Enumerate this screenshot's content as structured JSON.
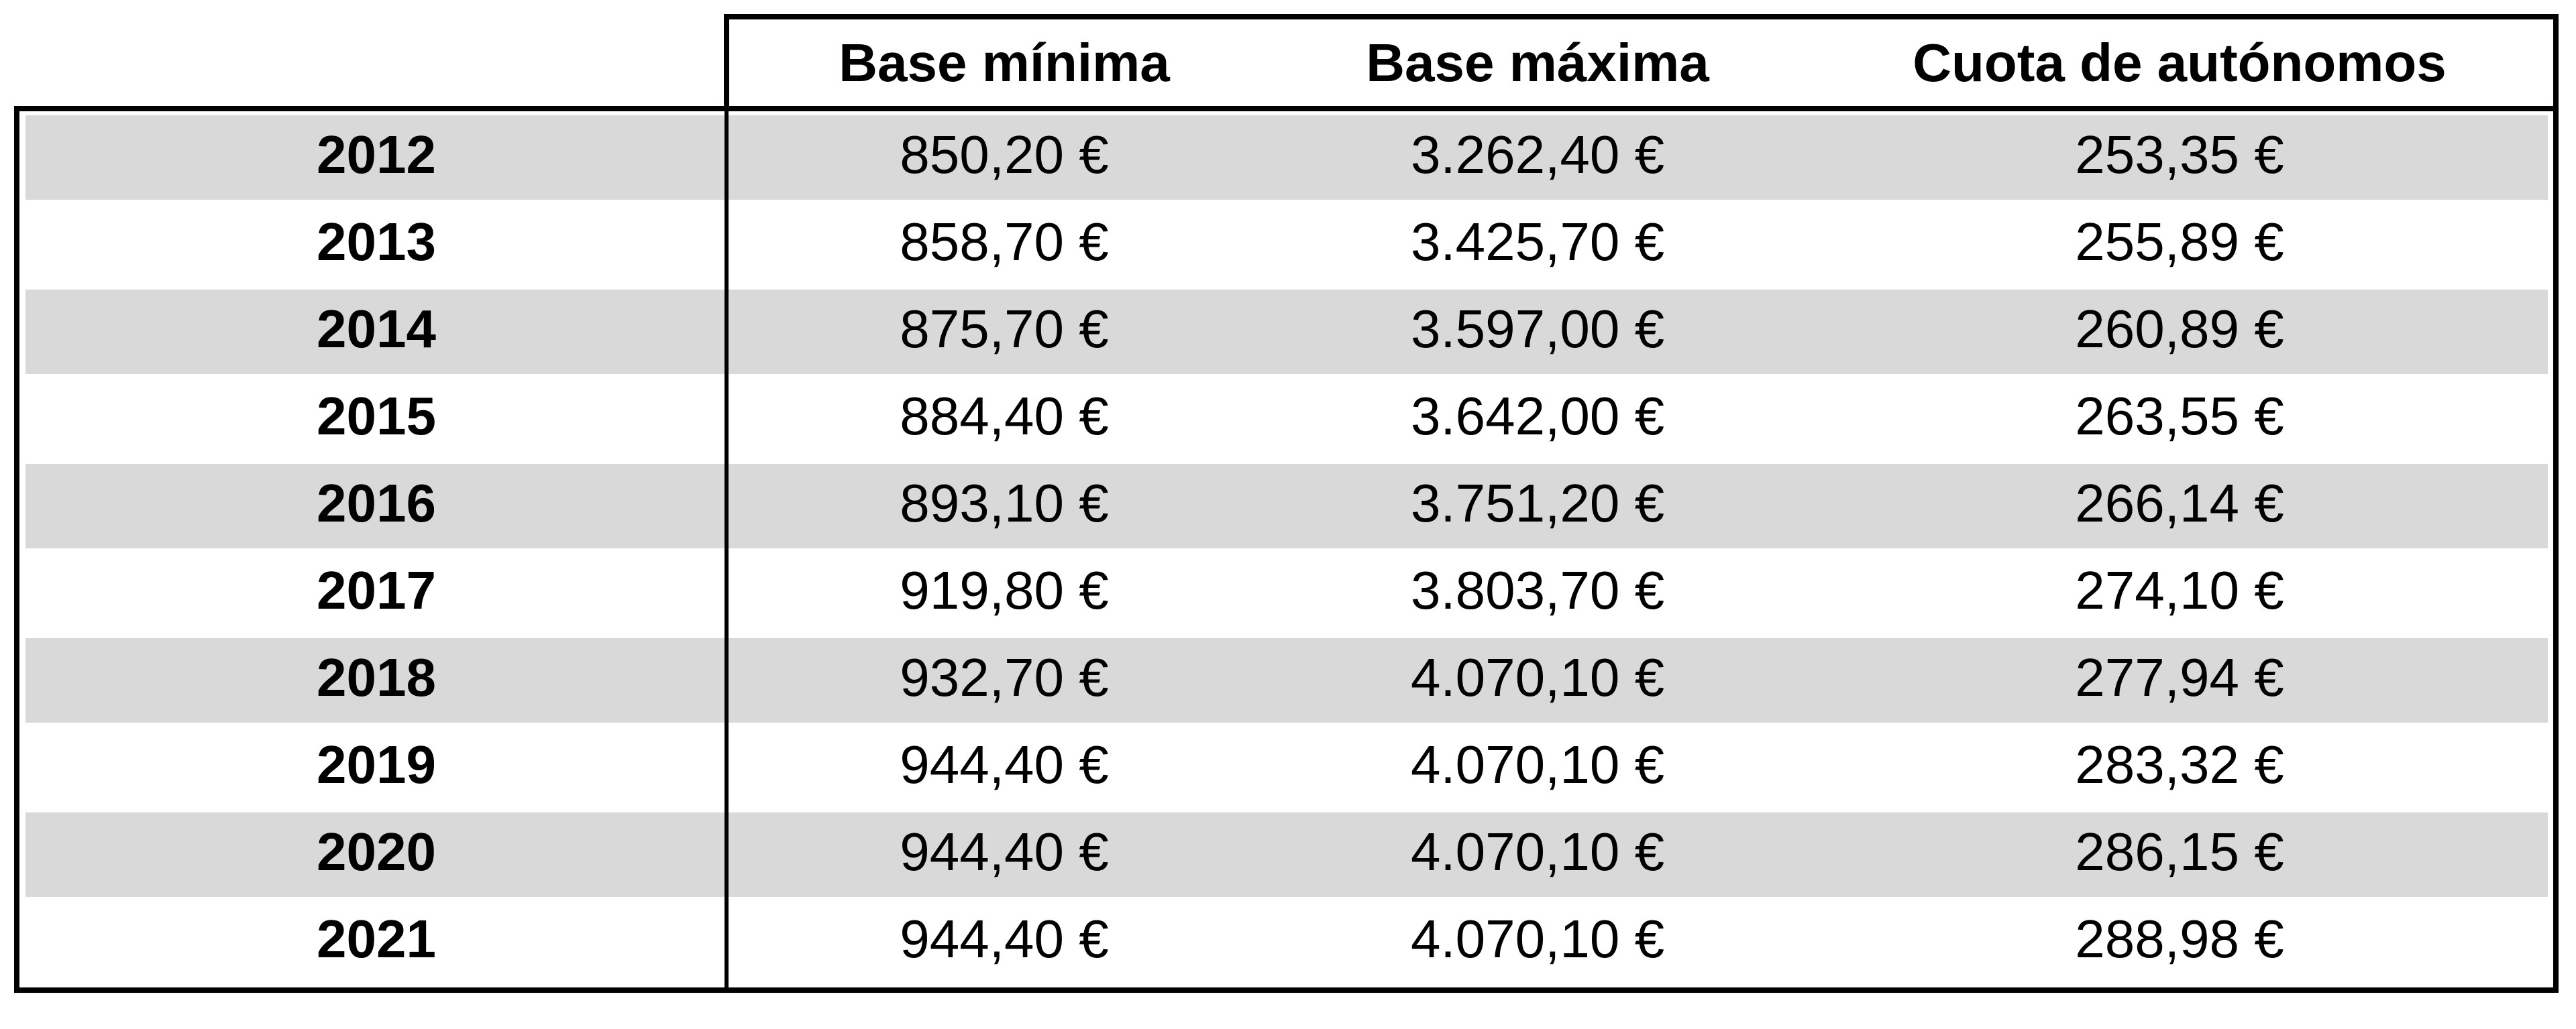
{
  "table": {
    "columns": [
      "Base mínima",
      "Base máxima",
      "Cuota de autónomos"
    ],
    "rows": [
      [
        "2012",
        "850,20 €",
        "3.262,40 €",
        "253,35 €"
      ],
      [
        "2013",
        "858,70 €",
        "3.425,70 €",
        "255,89 €"
      ],
      [
        "2014",
        "875,70 €",
        "3.597,00 €",
        "260,89 €"
      ],
      [
        "2015",
        "884,40 €",
        "3.642,00 €",
        "263,55 €"
      ],
      [
        "2016",
        "893,10 €",
        "3.751,20 €",
        "266,14 €"
      ],
      [
        "2017",
        "919,80 €",
        "3.803,70 €",
        "274,10 €"
      ],
      [
        "2018",
        "932,70 €",
        "4.070,10 €",
        "277,94 €"
      ],
      [
        "2019",
        "944,40 €",
        "4.070,10 €",
        "283,32 €"
      ],
      [
        "2020",
        "944,40 €",
        "4.070,10 €",
        "286,15 €"
      ],
      [
        "2021",
        "944,40 €",
        "4.070,10 €",
        "288,98 €"
      ]
    ]
  }
}
